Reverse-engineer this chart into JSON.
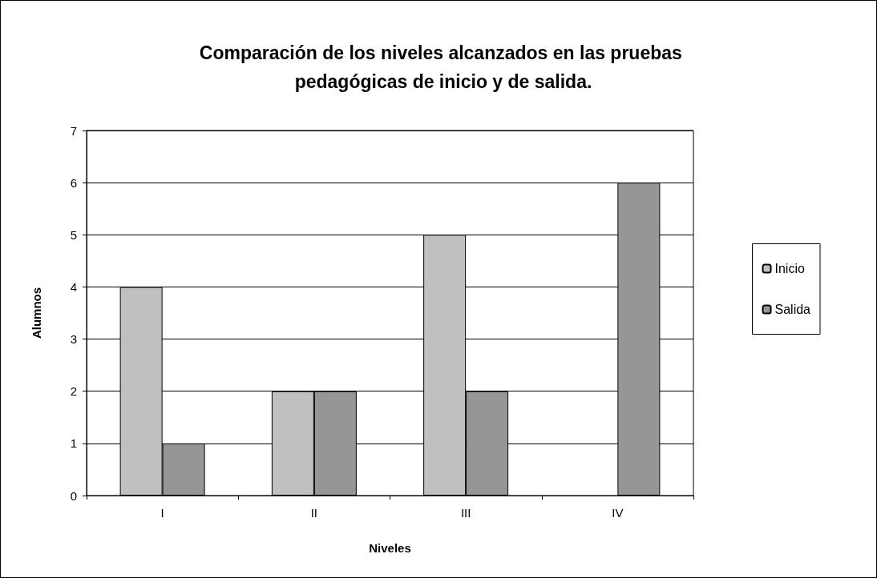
{
  "chart_data": {
    "type": "bar",
    "title": "Comparación de los niveles alcanzados en las pruebas pedagógicas de inicio y de salida.",
    "xlabel": "Niveles",
    "ylabel": "Alumnos",
    "categories": [
      "I",
      "II",
      "III",
      "IV"
    ],
    "series": [
      {
        "name": "Inicio",
        "color": "#c0c0c0",
        "values": [
          4,
          2,
          5,
          0
        ]
      },
      {
        "name": "Salida",
        "color": "#969696",
        "values": [
          1,
          2,
          2,
          6
        ]
      }
    ],
    "ylim": [
      0,
      7
    ],
    "yticks": [
      0,
      1,
      2,
      3,
      4,
      5,
      6,
      7
    ],
    "grid": "y",
    "legend": "right"
  }
}
